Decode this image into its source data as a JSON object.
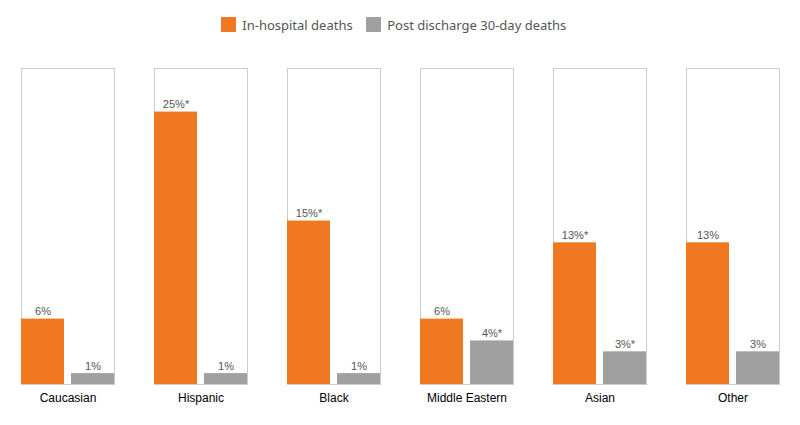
{
  "chart_data": {
    "type": "bar",
    "categories": [
      "Caucasian",
      "Hispanic",
      "Black",
      "Middle Eastern",
      "Asian",
      "Other"
    ],
    "series": [
      {
        "name": "In-hospital deaths",
        "color": "#F07820",
        "values": [
          6,
          25,
          15,
          6,
          13,
          13
        ],
        "value_labels": [
          "6%",
          "25%*",
          "15%*",
          "6%",
          "13%*",
          "13%"
        ]
      },
      {
        "name": "Post discharge 30-day deaths",
        "color": "#A0A0A0",
        "values": [
          1,
          1,
          1,
          4,
          3,
          3
        ],
        "value_labels": [
          "1%",
          "1%",
          "1%",
          "4%*",
          "3%*",
          "3%"
        ]
      }
    ],
    "ylim": [
      0,
      29
    ],
    "data_labels": true,
    "tick_labels": "x",
    "grid": false,
    "legend": "top"
  }
}
